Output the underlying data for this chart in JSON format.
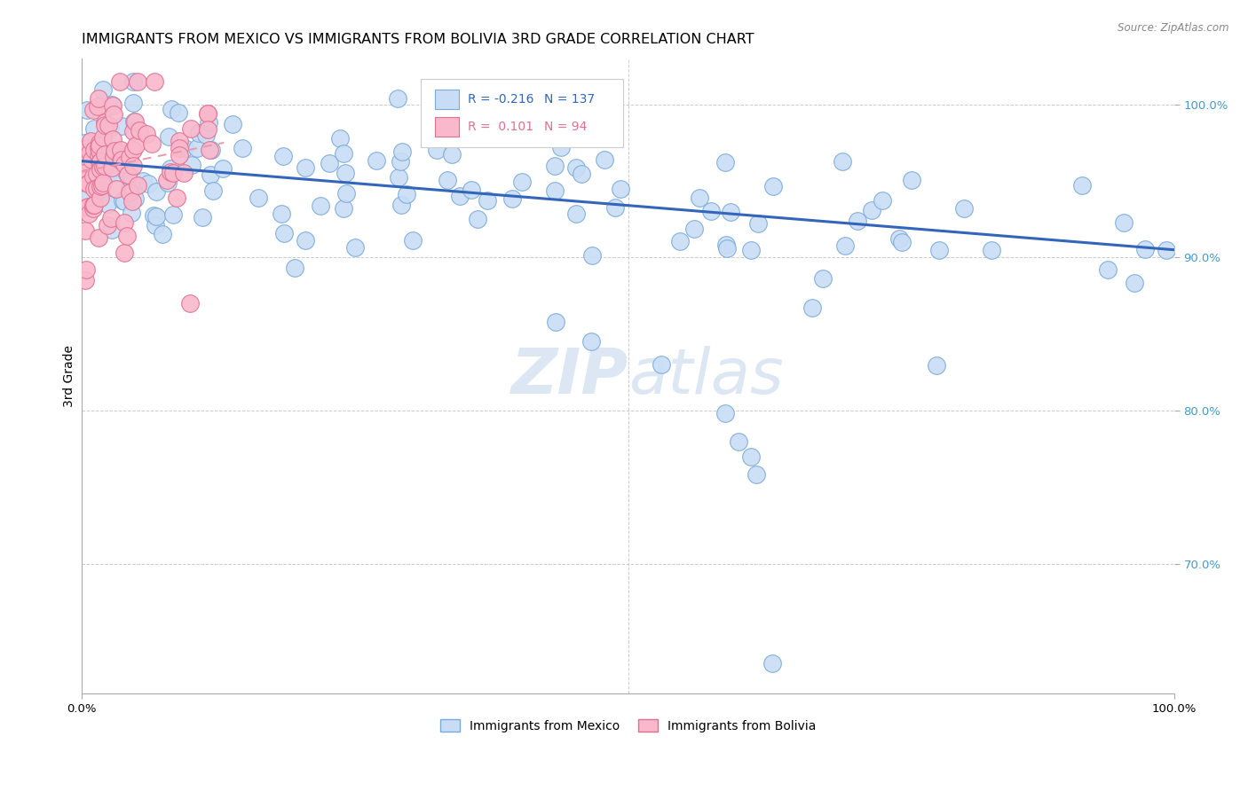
{
  "title": "IMMIGRANTS FROM MEXICO VS IMMIGRANTS FROM BOLIVIA 3RD GRADE CORRELATION CHART",
  "source": "Source: ZipAtlas.com",
  "ylabel": "3rd Grade",
  "legend_r_mexico": "-0.216",
  "legend_n_mexico": "137",
  "legend_r_bolivia": "0.101",
  "legend_n_bolivia": "94",
  "watermark_zip": "ZIP",
  "watermark_atlas": "atlas",
  "color_mexico": "#c8ddf5",
  "color_mexico_edge": "#7aaad8",
  "color_mexico_line": "#3366bb",
  "color_bolivia": "#f9b8cc",
  "color_bolivia_edge": "#e07090",
  "color_bolivia_line": "#e899aa",
  "grid_color": "#cccccc",
  "tick_color": "#4499cc",
  "title_fontsize": 11.5,
  "axis_label_fontsize": 10,
  "tick_fontsize": 9.5,
  "xlim": [
    0.0,
    1.0
  ],
  "ylim": [
    0.615,
    1.03
  ]
}
